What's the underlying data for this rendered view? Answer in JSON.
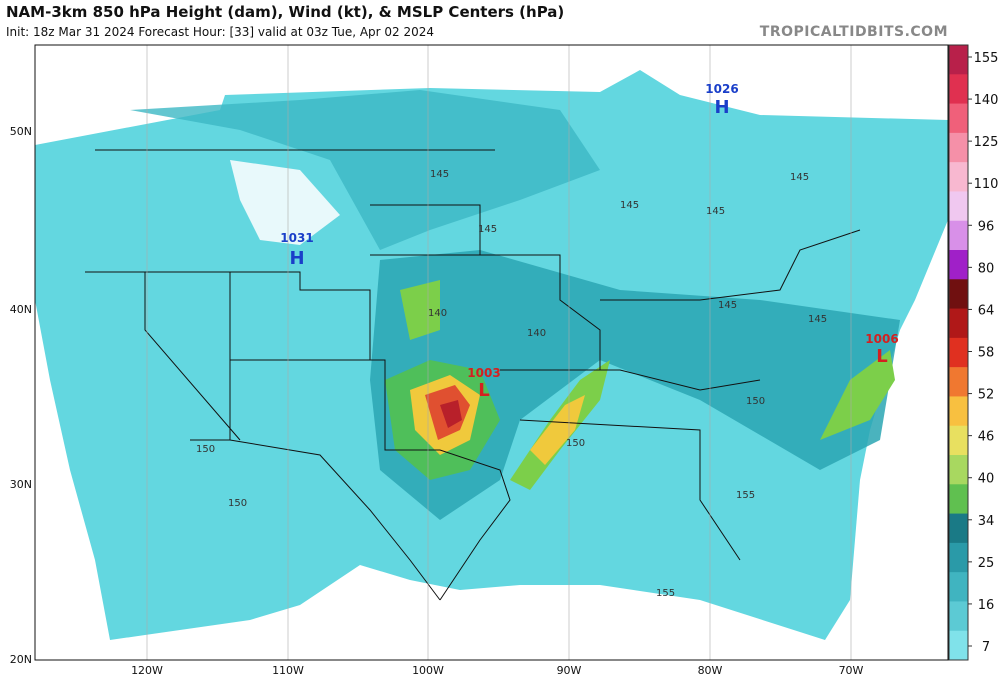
{
  "header": {
    "title": "NAM-3km 850 hPa Height (dam), Wind (kt), & MSLP Centers (hPa)",
    "subtitle": "Init: 18z Mar 31 2024   Forecast Hour: [33]   valid at 03z Tue, Apr 02 2024",
    "brand": "TROPICALTIDBITS.COM"
  },
  "axes": {
    "lat": [
      "50N",
      "40N",
      "30N",
      "20N"
    ],
    "lon": [
      "120W",
      "110W",
      "100W",
      "90W",
      "80W",
      "70W"
    ]
  },
  "contours": [
    "145",
    "145",
    "145",
    "145",
    "145",
    "145",
    "145",
    "140",
    "140",
    "150",
    "150",
    "150",
    "150",
    "155",
    "155"
  ],
  "centers": [
    {
      "value": "1026",
      "letter": "H"
    },
    {
      "value": "1031",
      "letter": "H"
    },
    {
      "value": "1006",
      "letter": "L"
    },
    {
      "value": "1003",
      "letter": "L"
    }
  ],
  "colorbar": {
    "ticks": [
      155,
      140,
      125,
      110,
      96,
      80,
      64,
      58,
      52,
      46,
      40,
      34,
      25,
      16,
      7
    ],
    "colors": [
      "#b8204a",
      "#e03050",
      "#f0607a",
      "#f590a8",
      "#f8b8d0",
      "#f0c8f0",
      "#d890e8",
      "#a020c8",
      "#701010",
      "#b01818",
      "#e03020",
      "#f07830",
      "#f8c040",
      "#e8e060",
      "#a8d860",
      "#60c050",
      "#1a7a86",
      "#2a9aa8",
      "#40b4c0",
      "#5ccad4",
      "#80e2ea"
    ]
  }
}
